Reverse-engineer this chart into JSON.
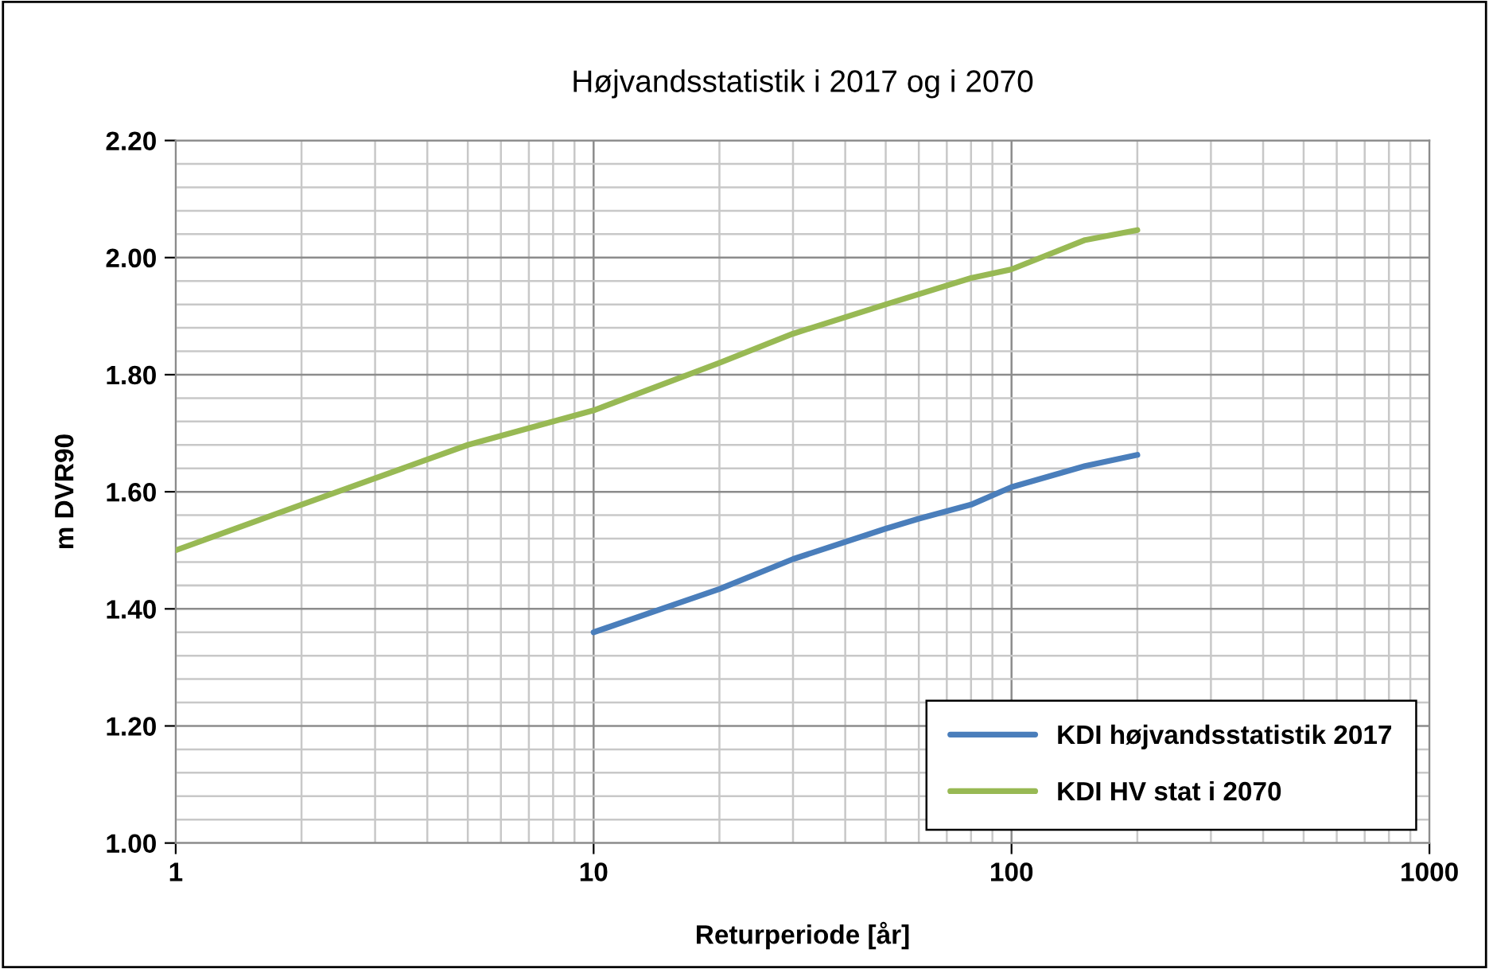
{
  "chart_data": {
    "type": "line",
    "title": "Højvandsstatistik i 2017 og i 2070",
    "xlabel": "Returperiode [år]",
    "ylabel": "m DVR90",
    "log": "x",
    "grid": true,
    "legend": "bottom right",
    "marker": "none",
    "line_style": "solid",
    "xlim": [
      1,
      1000
    ],
    "xticks": [
      1,
      10,
      100,
      1000
    ],
    "ylim": [
      1.0,
      2.2
    ],
    "yticks": [
      {
        "value": 1.0,
        "label": "1.00"
      },
      {
        "value": 1.2,
        "label": "1.20"
      },
      {
        "value": 1.4,
        "label": "1.40"
      },
      {
        "value": 1.6,
        "label": "1.60"
      },
      {
        "value": 1.8,
        "label": "1.80"
      },
      {
        "value": 2.0,
        "label": "2.00"
      },
      {
        "value": 2.2,
        "label": "2.20"
      }
    ],
    "series": [
      {
        "name": "KDI højvandsstatistik 2017",
        "color": "#4a7ebb",
        "x": [
          10,
          20,
          30,
          50,
          60,
          80,
          100,
          150,
          200
        ],
        "values": [
          1.36,
          1.434,
          1.485,
          1.537,
          1.554,
          1.578,
          1.608,
          1.644,
          1.663
        ]
      },
      {
        "name": "KDI HV stat i 2070",
        "color": "#98b954",
        "x": [
          1,
          2,
          5,
          10,
          20,
          30,
          50,
          80,
          100,
          150,
          200
        ],
        "values": [
          1.5,
          1.578,
          1.68,
          1.739,
          1.82,
          1.87,
          1.92,
          1.965,
          1.98,
          2.03,
          2.047
        ]
      }
    ]
  }
}
